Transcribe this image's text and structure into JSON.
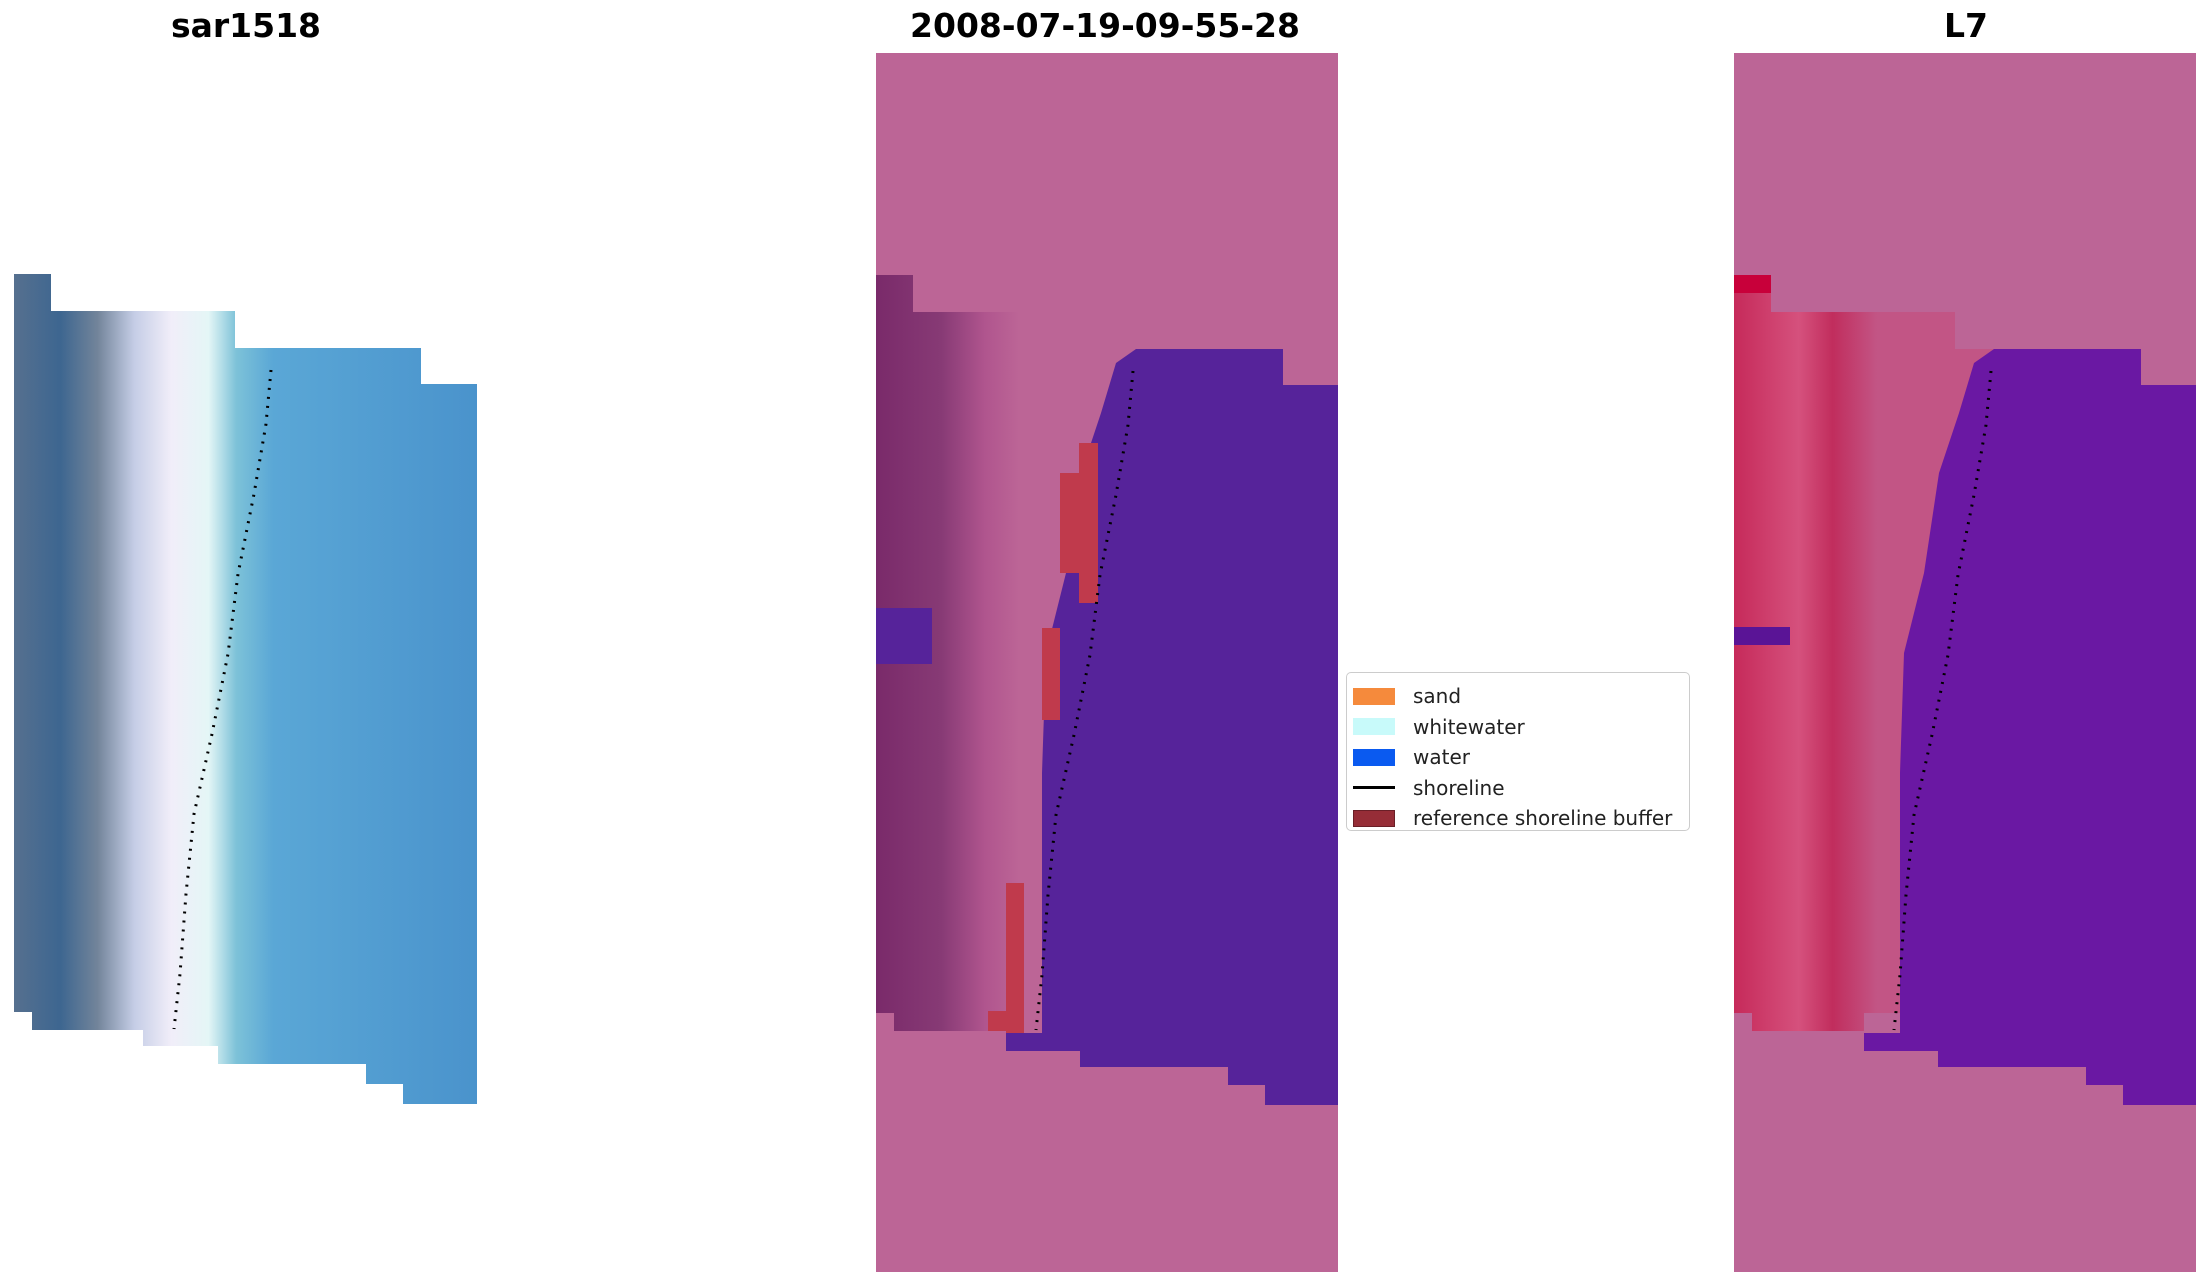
{
  "panels": [
    {
      "title": "sar1518"
    },
    {
      "title": "2008-07-19-09-55-28"
    },
    {
      "title": "L7"
    }
  ],
  "legend": {
    "items": [
      {
        "label": "sand",
        "color": "#f58a3c",
        "kind": "patch"
      },
      {
        "label": "whitewater",
        "color": "#c8fafa",
        "kind": "patch"
      },
      {
        "label": "water",
        "color": "#0a5af0",
        "kind": "patch"
      },
      {
        "label": "shoreline",
        "color": "#000000",
        "kind": "line"
      },
      {
        "label": "reference shoreline buffer",
        "color": "#962d37",
        "kind": "patch"
      }
    ]
  },
  "colors": {
    "background_pink": "#bc6596",
    "water_class": "#56239a",
    "buffer_red": "#c03a4c",
    "rgb_water": "#4a93cc"
  }
}
